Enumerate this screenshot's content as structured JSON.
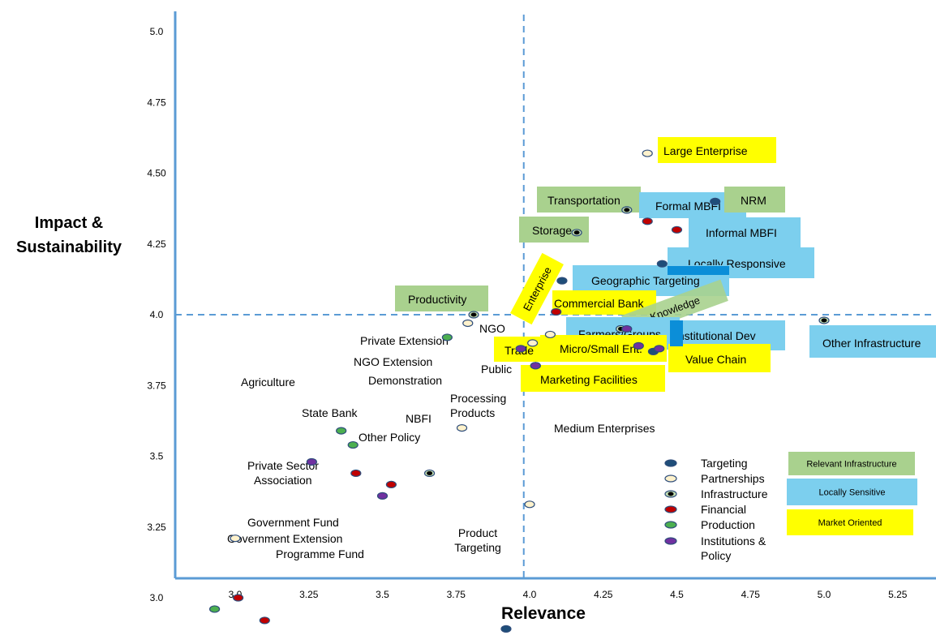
{
  "chart_data": {
    "type": "scatter",
    "xlabel": "Relevance",
    "ylabel": "Impact & Sustainability",
    "xlim": [
      2.8,
      5.3
    ],
    "ylim": [
      2.82,
      5.1
    ],
    "x_ticks": [
      "3.0",
      "3.25",
      "3.5",
      "3.75",
      "4.0",
      "4.25",
      "4.5",
      "4.75",
      "5.0",
      "5.25"
    ],
    "y_ticks": [
      "5.0",
      "4.75",
      "4.50",
      "4.25",
      "4.0",
      "3.75",
      "3.5",
      "3.25",
      "3.0"
    ],
    "reference_lines": {
      "x": 3.98,
      "y": 4.0
    },
    "series": [
      {
        "name": "Targeting",
        "color": "#1f4e79",
        "points": [
          {
            "label": "Geographic Targeting",
            "x": 4.11,
            "y": 4.12
          },
          {
            "label": "Locally Responsive",
            "x": 4.45,
            "y": 4.18
          },
          {
            "label": "NRM",
            "x": 4.63,
            "y": 4.4
          },
          {
            "label": "Product Targeting",
            "x": 3.92,
            "y": 2.89
          },
          {
            "label": "",
            "x": 4.42,
            "y": 3.87
          }
        ]
      },
      {
        "name": "Partnerships",
        "color": "#fff2cc",
        "points": [
          {
            "label": "Large Enterprise",
            "x": 4.4,
            "y": 4.57
          },
          {
            "label": "NGO",
            "x": 3.79,
            "y": 3.97
          },
          {
            "label": "",
            "x": 4.07,
            "y": 3.93
          },
          {
            "label": "Micro/Small Ent.",
            "x": 4.01,
            "y": 3.9
          },
          {
            "label": "Public",
            "x": 3.77,
            "y": 3.6
          },
          {
            "label": "Medium Enterprises",
            "x": 4.0,
            "y": 3.33
          },
          {
            "label": "Private Sector Association",
            "x": 3.0,
            "y": 3.21
          }
        ]
      },
      {
        "name": "Infrastructure",
        "color": "#c5e0b4",
        "points": [
          {
            "label": "Transportation",
            "x": 4.33,
            "y": 4.37
          },
          {
            "label": "Storage",
            "x": 4.16,
            "y": 4.29
          },
          {
            "label": "Productivity",
            "x": 3.81,
            "y": 4.0
          },
          {
            "label": "Knowledge",
            "x": 4.31,
            "y": 3.95
          },
          {
            "label": "Other Infrastructure",
            "x": 5.0,
            "y": 3.98
          },
          {
            "label": "",
            "x": 4.02,
            "y": 3.82
          },
          {
            "label": "Processing Products",
            "x": 3.66,
            "y": 3.44
          }
        ]
      },
      {
        "name": "Financial",
        "color": "#c00000",
        "points": [
          {
            "label": "Formal MBFI",
            "x": 4.4,
            "y": 4.33
          },
          {
            "label": "Informal MBFI",
            "x": 4.5,
            "y": 4.3
          },
          {
            "label": "Commercial Bank",
            "x": 4.09,
            "y": 4.01
          },
          {
            "label": "State Bank",
            "x": 3.41,
            "y": 3.44
          },
          {
            "label": "NBFI",
            "x": 3.53,
            "y": 3.4
          },
          {
            "label": "Government Fund",
            "x": 3.01,
            "y": 3.0
          },
          {
            "label": "Programme Fund",
            "x": 3.1,
            "y": 2.92
          }
        ]
      },
      {
        "name": "Production",
        "color": "#4caf50",
        "points": [
          {
            "label": "Private Extension",
            "x": 3.72,
            "y": 3.92
          },
          {
            "label": "NGO Extension",
            "x": 3.36,
            "y": 3.59
          },
          {
            "label": "Demonstration",
            "x": 3.4,
            "y": 3.54
          },
          {
            "label": "Government Extension",
            "x": 2.93,
            "y": 2.96
          }
        ]
      },
      {
        "name": "Institutions & Policy",
        "color": "#7030a0",
        "points": [
          {
            "label": "Agriculture",
            "x": 3.26,
            "y": 3.48
          },
          {
            "label": "Other Policy",
            "x": 3.5,
            "y": 3.36
          },
          {
            "label": "Trade",
            "x": 3.97,
            "y": 3.88
          },
          {
            "label": "Institutional Dev",
            "x": 4.37,
            "y": 3.89
          },
          {
            "label": "Farmers/Groups",
            "x": 4.33,
            "y": 3.95
          },
          {
            "label": "Value Chain",
            "x": 4.44,
            "y": 3.88
          },
          {
            "label": "Marketing Facilities",
            "x": 4.02,
            "y": 3.82
          }
        ]
      }
    ],
    "legend": {
      "placement": "bottom-right",
      "items": [
        "Targeting",
        "Partnerships",
        "Infrastructure",
        "Financial",
        "Production",
        "Institutions & Policy"
      ]
    },
    "category_boxes": [
      {
        "label": "Relevant Infrastructure",
        "color": "#a9d18e"
      },
      {
        "label": "Locally Sensitive",
        "color": "#7ccfee"
      },
      {
        "label": "Market Oriented",
        "color": "#ffff00"
      }
    ],
    "group_colors": {
      "green": "#a9d18e",
      "blue": "#7ccfee",
      "yellow": "#ffff00"
    },
    "box_labels": [
      {
        "text": "Large Enterprise",
        "group": "yellow"
      },
      {
        "text": "Transportation",
        "group": "green"
      },
      {
        "text": "Formal MBFI",
        "group": "blue"
      },
      {
        "text": "NRM",
        "group": "green"
      },
      {
        "text": "Storage",
        "group": "green"
      },
      {
        "text": "Informal MBFI",
        "group": "blue"
      },
      {
        "text": "Locally Responsive",
        "group": "blue"
      },
      {
        "text": "Geographic Targeting",
        "group": "blue"
      },
      {
        "text": "Productivity",
        "group": "green"
      },
      {
        "text": "Enterprise",
        "group": "yellow",
        "rotate": -62
      },
      {
        "text": "Commercial Bank",
        "group": "yellow"
      },
      {
        "text": "Knowledge",
        "group": "green",
        "rotate": -20
      },
      {
        "text": "Farmers/Groups",
        "group": "blue"
      },
      {
        "text": "Institutional Dev",
        "group": "blue"
      },
      {
        "text": "Micro/Small Ent.",
        "group": "yellow"
      },
      {
        "text": "Trade",
        "group": "yellow"
      },
      {
        "text": "Value Chain",
        "group": "yellow"
      },
      {
        "text": "Marketing Facilities",
        "group": "yellow"
      },
      {
        "text": "Other Infrastructure",
        "group": "blue"
      }
    ],
    "plain_labels": [
      {
        "lines": [
          "Private Extension"
        ]
      },
      {
        "lines": [
          "NGO"
        ]
      },
      {
        "lines": [
          "NGO Extension"
        ]
      },
      {
        "lines": [
          "Demonstration"
        ]
      },
      {
        "lines": [
          "Public"
        ]
      },
      {
        "lines": [
          "Agriculture"
        ]
      },
      {
        "lines": [
          "Processing",
          "Products"
        ]
      },
      {
        "lines": [
          "State Bank"
        ]
      },
      {
        "lines": [
          "NBFI"
        ]
      },
      {
        "lines": [
          "Other Policy"
        ]
      },
      {
        "lines": [
          "Medium Enterprises"
        ]
      },
      {
        "lines": [
          "Private Sector",
          "Association"
        ]
      },
      {
        "lines": [
          "Government Fund"
        ]
      },
      {
        "lines": [
          "Government Extension"
        ]
      },
      {
        "lines": [
          "Programme Fund"
        ]
      },
      {
        "lines": [
          "Product",
          "Targeting"
        ]
      }
    ]
  }
}
